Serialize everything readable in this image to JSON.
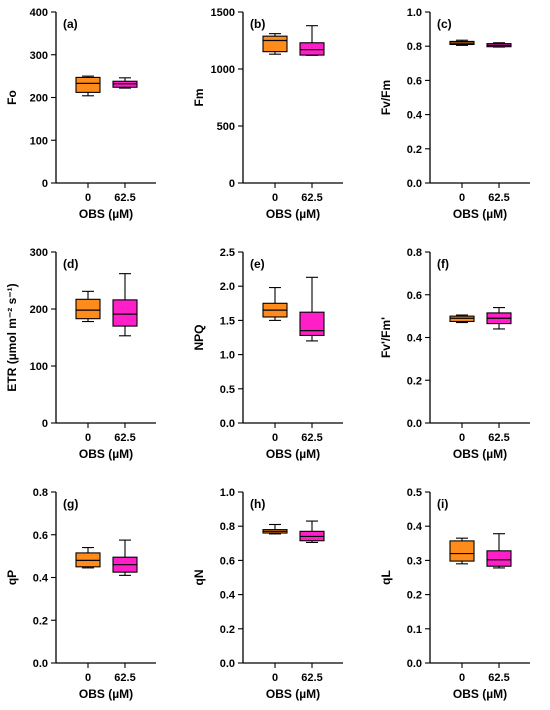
{
  "colors": {
    "orange": "#FF8C1A",
    "magenta": "#FF1FC8"
  },
  "chart_data": [
    {
      "type": "box",
      "panel": "(a)",
      "ylabel": "Fo",
      "xlabel": "OBS (µM)",
      "categories": [
        "0",
        "62.5"
      ],
      "ylim": [
        0,
        400
      ],
      "yticks": [
        0,
        100,
        200,
        300,
        400
      ],
      "boxes": [
        {
          "min": 204,
          "q1": 212,
          "median": 233,
          "q3": 247,
          "max": 250,
          "color": "#FF8C1A"
        },
        {
          "min": 222,
          "q1": 224,
          "median": 232,
          "q3": 238,
          "max": 246,
          "color": "#FF1FC8"
        }
      ]
    },
    {
      "type": "box",
      "panel": "(b)",
      "ylabel": "Fm",
      "xlabel": "OBS (µM)",
      "categories": [
        "0",
        "62.5"
      ],
      "ylim": [
        0,
        1500
      ],
      "yticks": [
        0,
        500,
        1000,
        1500
      ],
      "boxes": [
        {
          "min": 1130,
          "q1": 1152,
          "median": 1250,
          "q3": 1288,
          "max": 1310,
          "color": "#FF8C1A"
        },
        {
          "min": 1120,
          "q1": 1122,
          "median": 1170,
          "q3": 1230,
          "max": 1380,
          "color": "#FF1FC8"
        }
      ]
    },
    {
      "type": "box",
      "panel": "(c)",
      "ylabel": "Fv/Fm",
      "xlabel": "OBS (µM)",
      "categories": [
        "0",
        "62.5"
      ],
      "ylim": [
        0,
        1.0
      ],
      "yticks": [
        0.0,
        0.2,
        0.4,
        0.6,
        0.8,
        1.0
      ],
      "decimals": 1,
      "boxes": [
        {
          "min": 0.805,
          "q1": 0.81,
          "median": 0.818,
          "q3": 0.828,
          "max": 0.835,
          "color": "#FF8C1A"
        },
        {
          "min": 0.795,
          "q1": 0.797,
          "median": 0.805,
          "q3": 0.815,
          "max": 0.82,
          "color": "#FF1FC8"
        }
      ]
    },
    {
      "type": "box",
      "panel": "(d)",
      "ylabel": "ETR (µmol m⁻² s⁻¹)",
      "xlabel": "OBS (µM)",
      "categories": [
        "0",
        "62.5"
      ],
      "ylim": [
        0,
        300
      ],
      "yticks": [
        0,
        100,
        200,
        300
      ],
      "boxes": [
        {
          "min": 178,
          "q1": 183,
          "median": 198,
          "q3": 217,
          "max": 231,
          "color": "#FF8C1A"
        },
        {
          "min": 153,
          "q1": 170,
          "median": 191,
          "q3": 216,
          "max": 262,
          "color": "#FF1FC8"
        }
      ]
    },
    {
      "type": "box",
      "panel": "(e)",
      "ylabel": "NPQ",
      "xlabel": "OBS (µM)",
      "categories": [
        "0",
        "62.5"
      ],
      "ylim": [
        0,
        2.5
      ],
      "yticks": [
        0.0,
        0.5,
        1.0,
        1.5,
        2.0,
        2.5
      ],
      "decimals": 1,
      "boxes": [
        {
          "min": 1.5,
          "q1": 1.55,
          "median": 1.65,
          "q3": 1.75,
          "max": 1.98,
          "color": "#FF8C1A"
        },
        {
          "min": 1.2,
          "q1": 1.28,
          "median": 1.35,
          "q3": 1.62,
          "max": 2.13,
          "color": "#FF1FC8"
        }
      ]
    },
    {
      "type": "box",
      "panel": "(f)",
      "ylabel": "Fv'/Fm'",
      "xlabel": "OBS (µM)",
      "categories": [
        "0",
        "62.5"
      ],
      "ylim": [
        0,
        0.8
      ],
      "yticks": [
        0.0,
        0.2,
        0.4,
        0.6,
        0.8
      ],
      "decimals": 1,
      "boxes": [
        {
          "min": 0.47,
          "q1": 0.475,
          "median": 0.49,
          "q3": 0.5,
          "max": 0.505,
          "color": "#FF8C1A"
        },
        {
          "min": 0.44,
          "q1": 0.465,
          "median": 0.49,
          "q3": 0.515,
          "max": 0.54,
          "color": "#FF1FC8"
        }
      ]
    },
    {
      "type": "box",
      "panel": "(g)",
      "ylabel": "qP",
      "xlabel": "OBS (µM)",
      "categories": [
        "0",
        "62.5"
      ],
      "ylim": [
        0,
        0.8
      ],
      "yticks": [
        0.0,
        0.2,
        0.4,
        0.6,
        0.8
      ],
      "decimals": 1,
      "boxes": [
        {
          "min": 0.445,
          "q1": 0.45,
          "median": 0.48,
          "q3": 0.515,
          "max": 0.54,
          "color": "#FF8C1A"
        },
        {
          "min": 0.41,
          "q1": 0.425,
          "median": 0.46,
          "q3": 0.495,
          "max": 0.575,
          "color": "#FF1FC8"
        }
      ]
    },
    {
      "type": "box",
      "panel": "(h)",
      "ylabel": "qN",
      "xlabel": "OBS (µM)",
      "categories": [
        "0",
        "62.5"
      ],
      "ylim": [
        0,
        1.0
      ],
      "yticks": [
        0.0,
        0.2,
        0.4,
        0.6,
        0.8,
        1.0
      ],
      "decimals": 1,
      "boxes": [
        {
          "min": 0.755,
          "q1": 0.76,
          "median": 0.77,
          "q3": 0.78,
          "max": 0.81,
          "color": "#FF8C1A"
        },
        {
          "min": 0.705,
          "q1": 0.715,
          "median": 0.74,
          "q3": 0.77,
          "max": 0.83,
          "color": "#FF1FC8"
        }
      ]
    },
    {
      "type": "box",
      "panel": "(i)",
      "ylabel": "qL",
      "xlabel": "OBS (µM)",
      "categories": [
        "0",
        "62.5"
      ],
      "ylim": [
        0,
        0.5
      ],
      "yticks": [
        0.0,
        0.1,
        0.2,
        0.3,
        0.4,
        0.5
      ],
      "decimals": 1,
      "boxes": [
        {
          "min": 0.29,
          "q1": 0.298,
          "median": 0.32,
          "q3": 0.357,
          "max": 0.365,
          "color": "#FF8C1A"
        },
        {
          "min": 0.278,
          "q1": 0.283,
          "median": 0.302,
          "q3": 0.328,
          "max": 0.378,
          "color": "#FF1FC8"
        }
      ]
    }
  ]
}
